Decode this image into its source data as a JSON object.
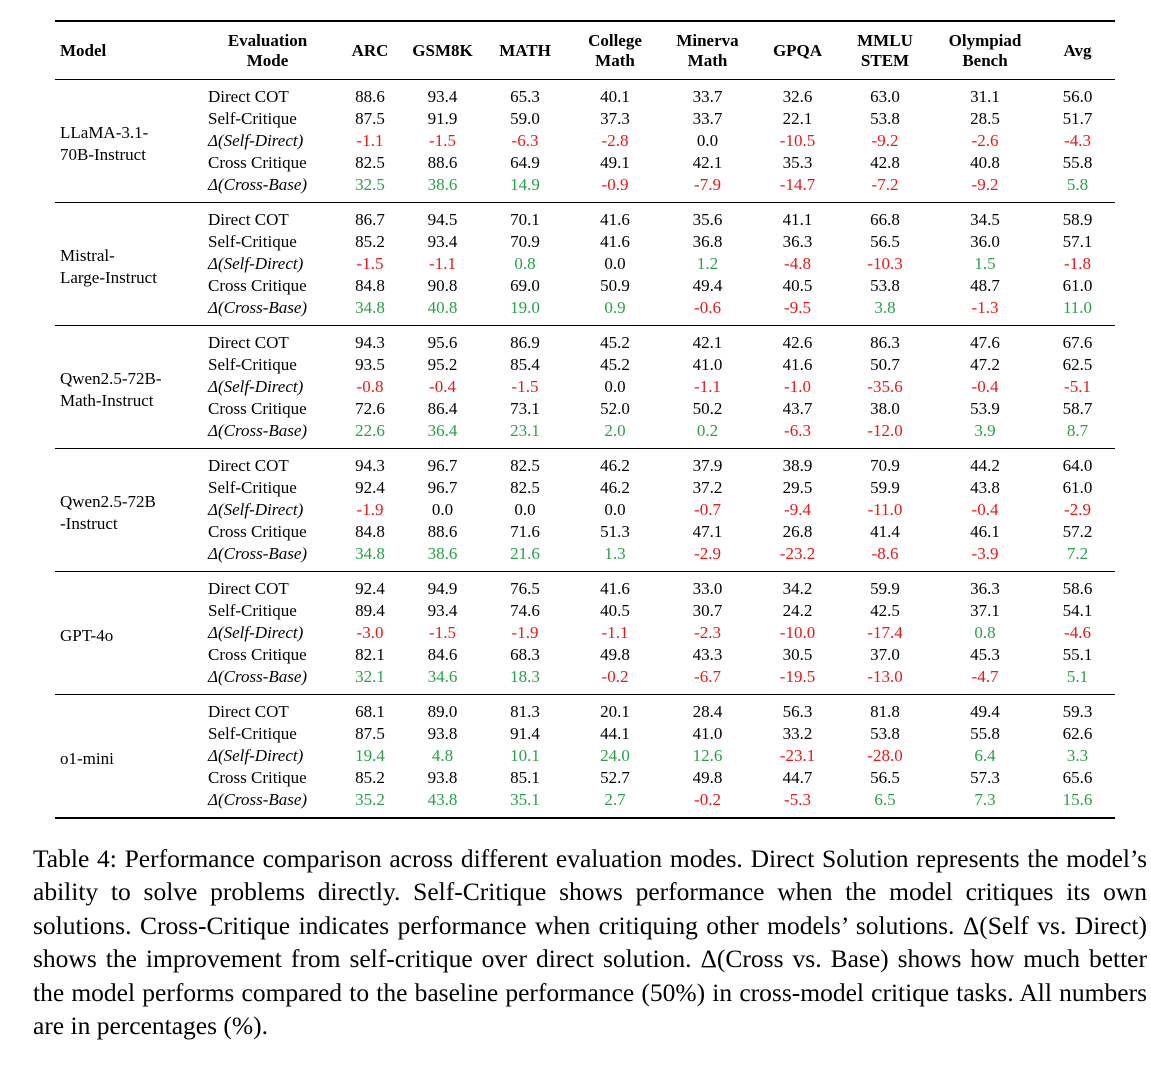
{
  "colors": {
    "negative": "#ee1515",
    "positive": "#28a048",
    "text": "#000000"
  },
  "table": {
    "columns": [
      "Model",
      "Evaluation\nMode",
      "ARC",
      "GSM8K",
      "MATH",
      "College\nMath",
      "Minerva\nMath",
      "GPQA",
      "MMLU\nSTEM",
      "Olympiad\nBench",
      "Avg"
    ],
    "groups": [
      {
        "model": "LLaMA-3.1-\n70B-Instruct",
        "rows": [
          {
            "mode": "Direct COT",
            "italic": false,
            "values": [
              "88.6",
              "93.4",
              "65.3",
              "40.1",
              "33.7",
              "32.6",
              "63.0",
              "31.1",
              "56.0"
            ]
          },
          {
            "mode": "Self-Critique",
            "italic": false,
            "values": [
              "87.5",
              "91.9",
              "59.0",
              "37.3",
              "33.7",
              "22.1",
              "53.8",
              "28.5",
              "51.7"
            ]
          },
          {
            "mode": "Δ(Self-Direct)",
            "italic": true,
            "values": [
              "-1.1",
              "-1.5",
              "-6.3",
              "-2.8",
              "0.0",
              "-10.5",
              "-9.2",
              "-2.6",
              "-4.3"
            ],
            "colors": [
              "r",
              "r",
              "r",
              "r",
              "k",
              "r",
              "r",
              "r",
              "r"
            ]
          },
          {
            "mode": "Cross Critique",
            "italic": false,
            "values": [
              "82.5",
              "88.6",
              "64.9",
              "49.1",
              "42.1",
              "35.3",
              "42.8",
              "40.8",
              "55.8"
            ]
          },
          {
            "mode": "Δ(Cross-Base)",
            "italic": true,
            "values": [
              "32.5",
              "38.6",
              "14.9",
              "-0.9",
              "-7.9",
              "-14.7",
              "-7.2",
              "-9.2",
              "5.8"
            ],
            "colors": [
              "g",
              "g",
              "g",
              "r",
              "r",
              "r",
              "r",
              "r",
              "g"
            ]
          }
        ]
      },
      {
        "model": "Mistral-\nLarge-Instruct",
        "rows": [
          {
            "mode": "Direct COT",
            "italic": false,
            "values": [
              "86.7",
              "94.5",
              "70.1",
              "41.6",
              "35.6",
              "41.1",
              "66.8",
              "34.5",
              "58.9"
            ]
          },
          {
            "mode": "Self-Critique",
            "italic": false,
            "values": [
              "85.2",
              "93.4",
              "70.9",
              "41.6",
              "36.8",
              "36.3",
              "56.5",
              "36.0",
              "57.1"
            ]
          },
          {
            "mode": "Δ(Self-Direct)",
            "italic": true,
            "values": [
              "-1.5",
              "-1.1",
              "0.8",
              "0.0",
              "1.2",
              "-4.8",
              "-10.3",
              "1.5",
              "-1.8"
            ],
            "colors": [
              "r",
              "r",
              "g",
              "k",
              "g",
              "r",
              "r",
              "g",
              "r"
            ]
          },
          {
            "mode": "Cross Critique",
            "italic": false,
            "values": [
              "84.8",
              "90.8",
              "69.0",
              "50.9",
              "49.4",
              "40.5",
              "53.8",
              "48.7",
              "61.0"
            ]
          },
          {
            "mode": "Δ(Cross-Base)",
            "italic": true,
            "values": [
              "34.8",
              "40.8",
              "19.0",
              "0.9",
              "-0.6",
              "-9.5",
              "3.8",
              "-1.3",
              "11.0"
            ],
            "colors": [
              "g",
              "g",
              "g",
              "g",
              "r",
              "r",
              "g",
              "r",
              "g"
            ]
          }
        ]
      },
      {
        "model": "Qwen2.5-72B-\nMath-Instruct",
        "rows": [
          {
            "mode": "Direct COT",
            "italic": false,
            "values": [
              "94.3",
              "95.6",
              "86.9",
              "45.2",
              "42.1",
              "42.6",
              "86.3",
              "47.6",
              "67.6"
            ]
          },
          {
            "mode": "Self-Critique",
            "italic": false,
            "values": [
              "93.5",
              "95.2",
              "85.4",
              "45.2",
              "41.0",
              "41.6",
              "50.7",
              "47.2",
              "62.5"
            ]
          },
          {
            "mode": "Δ(Self-Direct)",
            "italic": true,
            "values": [
              "-0.8",
              "-0.4",
              "-1.5",
              "0.0",
              "-1.1",
              "-1.0",
              "-35.6",
              "-0.4",
              "-5.1"
            ],
            "colors": [
              "r",
              "r",
              "r",
              "k",
              "r",
              "r",
              "r",
              "r",
              "r"
            ]
          },
          {
            "mode": "Cross Critique",
            "italic": false,
            "values": [
              "72.6",
              "86.4",
              "73.1",
              "52.0",
              "50.2",
              "43.7",
              "38.0",
              "53.9",
              "58.7"
            ]
          },
          {
            "mode": "Δ(Cross-Base)",
            "italic": true,
            "values": [
              "22.6",
              "36.4",
              "23.1",
              "2.0",
              "0.2",
              "-6.3",
              "-12.0",
              "3.9",
              "8.7"
            ],
            "colors": [
              "g",
              "g",
              "g",
              "g",
              "g",
              "r",
              "r",
              "g",
              "g"
            ]
          }
        ]
      },
      {
        "model": "Qwen2.5-72B\n-Instruct",
        "rows": [
          {
            "mode": "Direct COT",
            "italic": false,
            "values": [
              "94.3",
              "96.7",
              "82.5",
              "46.2",
              "37.9",
              "38.9",
              "70.9",
              "44.2",
              "64.0"
            ]
          },
          {
            "mode": "Self-Critique",
            "italic": false,
            "values": [
              "92.4",
              "96.7",
              "82.5",
              "46.2",
              "37.2",
              "29.5",
              "59.9",
              "43.8",
              "61.0"
            ]
          },
          {
            "mode": "Δ(Self-Direct)",
            "italic": true,
            "values": [
              "-1.9",
              "0.0",
              "0.0",
              "0.0",
              "-0.7",
              "-9.4",
              "-11.0",
              "-0.4",
              "-2.9"
            ],
            "colors": [
              "r",
              "k",
              "k",
              "k",
              "r",
              "r",
              "r",
              "r",
              "r"
            ]
          },
          {
            "mode": "Cross Critique",
            "italic": false,
            "values": [
              "84.8",
              "88.6",
              "71.6",
              "51.3",
              "47.1",
              "26.8",
              "41.4",
              "46.1",
              "57.2"
            ]
          },
          {
            "mode": "Δ(Cross-Base)",
            "italic": true,
            "values": [
              "34.8",
              "38.6",
              "21.6",
              "1.3",
              "-2.9",
              "-23.2",
              "-8.6",
              "-3.9",
              "7.2"
            ],
            "colors": [
              "g",
              "g",
              "g",
              "g",
              "r",
              "r",
              "r",
              "r",
              "g"
            ]
          }
        ]
      },
      {
        "model": "GPT-4o",
        "rows": [
          {
            "mode": "Direct COT",
            "italic": false,
            "values": [
              "92.4",
              "94.9",
              "76.5",
              "41.6",
              "33.0",
              "34.2",
              "59.9",
              "36.3",
              "58.6"
            ]
          },
          {
            "mode": "Self-Critique",
            "italic": false,
            "values": [
              "89.4",
              "93.4",
              "74.6",
              "40.5",
              "30.7",
              "24.2",
              "42.5",
              "37.1",
              "54.1"
            ]
          },
          {
            "mode": "Δ(Self-Direct)",
            "italic": true,
            "values": [
              "-3.0",
              "-1.5",
              "-1.9",
              "-1.1",
              "-2.3",
              "-10.0",
              "-17.4",
              "0.8",
              "-4.6"
            ],
            "colors": [
              "r",
              "r",
              "r",
              "r",
              "r",
              "r",
              "r",
              "g",
              "r"
            ]
          },
          {
            "mode": "Cross Critique",
            "italic": false,
            "values": [
              "82.1",
              "84.6",
              "68.3",
              "49.8",
              "43.3",
              "30.5",
              "37.0",
              "45.3",
              "55.1"
            ]
          },
          {
            "mode": "Δ(Cross-Base)",
            "italic": true,
            "values": [
              "32.1",
              "34.6",
              "18.3",
              "-0.2",
              "-6.7",
              "-19.5",
              "-13.0",
              "-4.7",
              "5.1"
            ],
            "colors": [
              "g",
              "g",
              "g",
              "r",
              "r",
              "r",
              "r",
              "r",
              "g"
            ]
          }
        ]
      },
      {
        "model": "o1-mini",
        "rows": [
          {
            "mode": "Direct COT",
            "italic": false,
            "values": [
              "68.1",
              "89.0",
              "81.3",
              "20.1",
              "28.4",
              "56.3",
              "81.8",
              "49.4",
              "59.3"
            ]
          },
          {
            "mode": "Self-Critique",
            "italic": false,
            "values": [
              "87.5",
              "93.8",
              "91.4",
              "44.1",
              "41.0",
              "33.2",
              "53.8",
              "55.8",
              "62.6"
            ]
          },
          {
            "mode": "Δ(Self-Direct)",
            "italic": true,
            "values": [
              "19.4",
              "4.8",
              "10.1",
              "24.0",
              "12.6",
              "-23.1",
              "-28.0",
              "6.4",
              "3.3"
            ],
            "colors": [
              "g",
              "g",
              "g",
              "g",
              "g",
              "r",
              "r",
              "g",
              "g"
            ]
          },
          {
            "mode": "Cross Critique",
            "italic": false,
            "values": [
              "85.2",
              "93.8",
              "85.1",
              "52.7",
              "49.8",
              "44.7",
              "56.5",
              "57.3",
              "65.6"
            ]
          },
          {
            "mode": "Δ(Cross-Base)",
            "italic": true,
            "values": [
              "35.2",
              "43.8",
              "35.1",
              "2.7",
              "-0.2",
              "-5.3",
              "6.5",
              "7.3",
              "15.6"
            ],
            "colors": [
              "g",
              "g",
              "g",
              "g",
              "r",
              "r",
              "g",
              "g",
              "g"
            ]
          }
        ]
      }
    ]
  },
  "caption": {
    "text": "Table 4: Performance comparison across different evaluation modes. Direct Solution represents the model’s ability to solve problems directly. Self-Critique shows performance when the model critiques its own solutions. Cross-Critique indicates performance when critiquing other models’ solutions. Δ(Self vs. Direct) shows the improvement from self-critique over direct solution. Δ(Cross vs. Base) shows how much better the model performs compared to the baseline performance (50%) in cross-model critique tasks. All numbers are in percentages (%)."
  }
}
